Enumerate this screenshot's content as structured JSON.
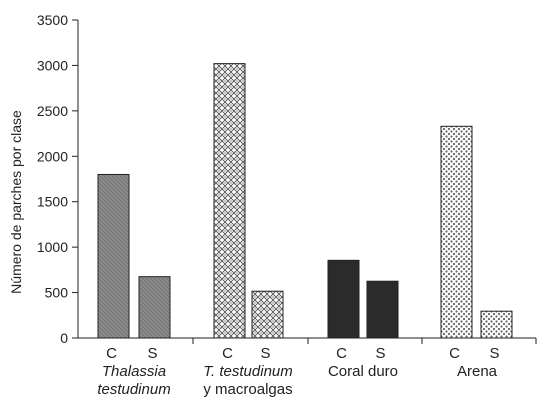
{
  "chart_data": {
    "type": "bar",
    "ylabel": "Número de parches por clase",
    "ylim": [
      0,
      3500
    ],
    "yticks": [
      0,
      500,
      1000,
      1500,
      2000,
      2500,
      3000,
      3500
    ],
    "grid": false,
    "bar_labels": [
      "C",
      "S"
    ],
    "groups": [
      {
        "label_lines": [
          "Thalassia",
          "testudinum"
        ],
        "italic": [
          true,
          true
        ],
        "fill": "hatch-gray",
        "values": [
          1800,
          675
        ]
      },
      {
        "label_lines": [
          "T. testudinum",
          "y macroalgas"
        ],
        "italic": [
          true,
          false
        ],
        "fill": "checker",
        "values": [
          3020,
          515
        ]
      },
      {
        "label_lines": [
          "Coral duro"
        ],
        "italic": [
          false
        ],
        "fill": "dark",
        "values": [
          855,
          625
        ]
      },
      {
        "label_lines": [
          "Arena"
        ],
        "italic": [
          false
        ],
        "fill": "dots",
        "values": [
          2330,
          295
        ]
      }
    ],
    "colors": {
      "axis": "#222222",
      "bar_outline": "#222222",
      "hatch_gray": "#8c8c8c",
      "dark": "#2b2b2b"
    }
  }
}
